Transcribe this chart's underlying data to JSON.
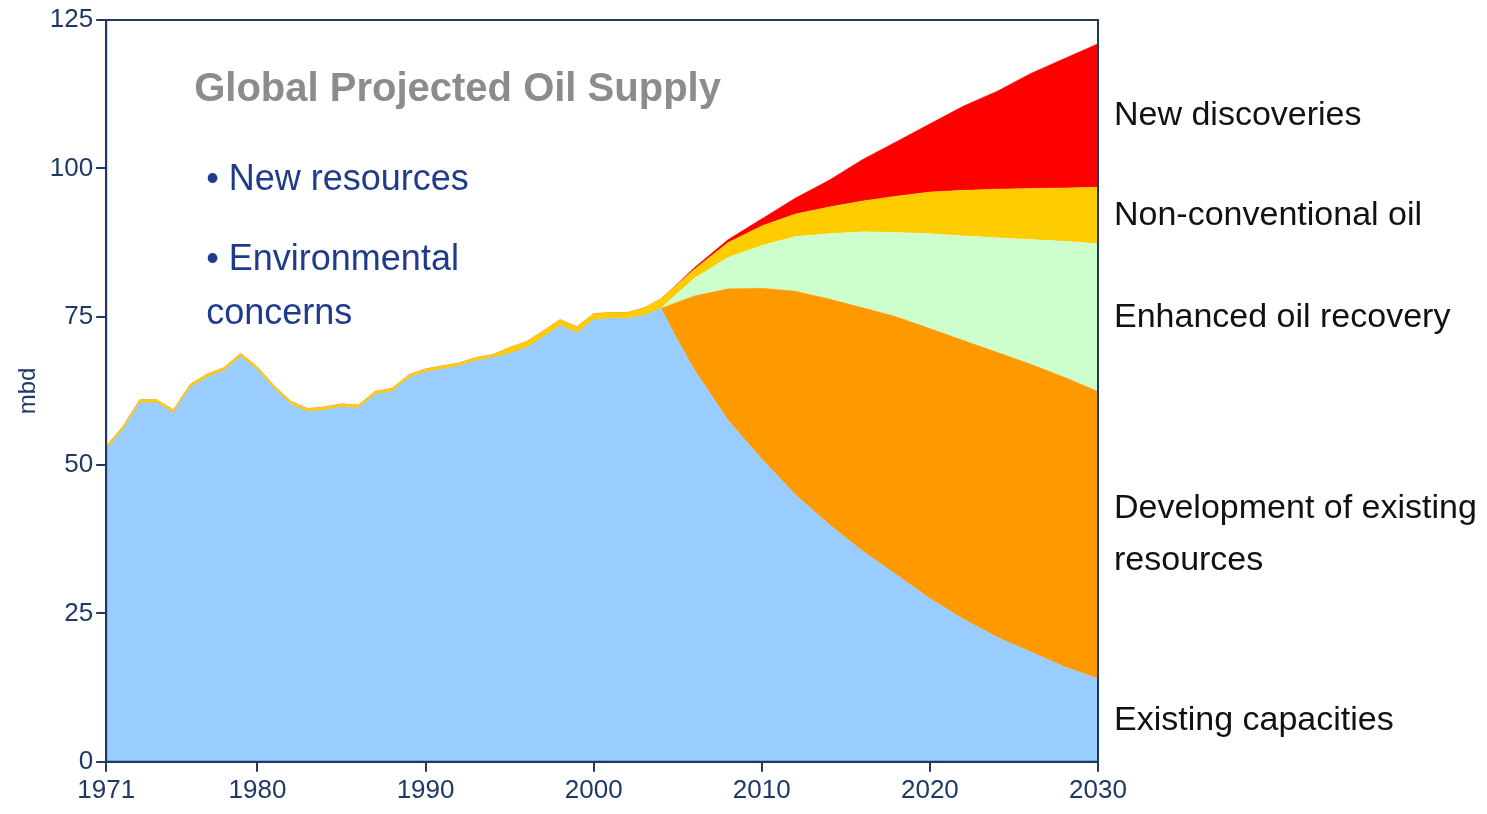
{
  "chart_data": {
    "type": "area",
    "stacked": true,
    "title": "Global Projected Oil Supply",
    "ylabel": "mbd",
    "annotations": [
      "• New resources",
      "• Environmental concerns"
    ],
    "x": [
      1971,
      1972,
      1973,
      1974,
      1975,
      1976,
      1977,
      1978,
      1979,
      1980,
      1981,
      1982,
      1983,
      1984,
      1985,
      1986,
      1987,
      1988,
      1989,
      1990,
      1991,
      1992,
      1993,
      1994,
      1995,
      1996,
      1997,
      1998,
      1999,
      2000,
      2001,
      2002,
      2003,
      2004,
      2005,
      2006,
      2008,
      2010,
      2012,
      2014,
      2016,
      2018,
      2020,
      2022,
      2024,
      2026,
      2028,
      2030
    ],
    "xlim": [
      1971,
      2030
    ],
    "xticks": [
      1971,
      1980,
      1990,
      2000,
      2010,
      2020,
      2030
    ],
    "ylim": [
      0,
      125
    ],
    "yticks": [
      0,
      25,
      50,
      75,
      100,
      125
    ],
    "grid": false,
    "legend": false,
    "marker": "none",
    "series": [
      {
        "name": "Existing capacities",
        "color": "#99ccff",
        "values": [
          52.7,
          56,
          60.5,
          60.5,
          58.8,
          63.1,
          64.8,
          65.9,
          68.3,
          66,
          62.8,
          60.2,
          59,
          59.3,
          59.8,
          59.6,
          61.9,
          62.4,
          64.7,
          65.7,
          66.2,
          66.7,
          67.6,
          68.1,
          68.8,
          69.8,
          71.6,
          73.5,
          72.3,
          74.5,
          74.7,
          74.7,
          75.2,
          76.4,
          71,
          66,
          57.5,
          51,
          45,
          40,
          35.5,
          31.5,
          27.5,
          24,
          21,
          18.5,
          16,
          14
        ]
      },
      {
        "name": "Development of existing resources",
        "color": "#ff9900",
        "values": [
          0,
          0,
          0,
          0,
          0,
          0,
          0,
          0,
          0,
          0,
          0,
          0,
          0,
          0,
          0,
          0,
          0,
          0,
          0,
          0,
          0,
          0,
          0,
          0,
          0,
          0,
          0,
          0,
          0,
          0,
          0,
          0,
          0,
          0,
          6.5,
          12.5,
          22.2,
          28.8,
          34.3,
          38,
          41,
          43.5,
          45.5,
          47,
          48,
          48.5,
          48.8,
          48.4
        ]
      },
      {
        "name": "Enhanced oil recovery",
        "color": "#ccffcc",
        "values": [
          0,
          0,
          0,
          0,
          0,
          0,
          0,
          0,
          0,
          0,
          0,
          0,
          0,
          0,
          0,
          0,
          0,
          0,
          0,
          0,
          0,
          0,
          0,
          0,
          0,
          0,
          0,
          0,
          0,
          0,
          0,
          0,
          0,
          0,
          1.5,
          3,
          5.3,
          7.2,
          9.2,
          11,
          12.8,
          14.2,
          16,
          17.6,
          19.3,
          21,
          22.9,
          24.9
        ]
      },
      {
        "name": "Non-conventional oil",
        "color": "#ffcc00",
        "values": [
          0.5,
          0.5,
          0.5,
          0.5,
          0.5,
          0.5,
          0.5,
          0.5,
          0.5,
          0.5,
          0.5,
          0.5,
          0.5,
          0.5,
          0.5,
          0.5,
          0.5,
          0.5,
          0.5,
          0.5,
          0.5,
          0.5,
          0.5,
          0.5,
          1,
          1,
          1,
          1,
          1,
          1,
          1,
          1,
          1.3,
          1.6,
          1.5,
          1.5,
          2.5,
          3.3,
          3.8,
          4.5,
          5.2,
          6.1,
          7,
          7.7,
          8.2,
          8.6,
          9,
          9.5
        ]
      },
      {
        "name": "New discoveries",
        "color": "#ff0000",
        "values": [
          0,
          0,
          0,
          0,
          0,
          0,
          0,
          0,
          0,
          0,
          0,
          0,
          0,
          0,
          0,
          0,
          0,
          0,
          0,
          0,
          0,
          0,
          0,
          0,
          0,
          0,
          0,
          0,
          0,
          0,
          0,
          0,
          0,
          0,
          0.1,
          0.3,
          0.5,
          1.2,
          2.7,
          4.5,
          7,
          9.2,
          11.5,
          14.2,
          16.5,
          19.4,
          21.8,
          24.2
        ]
      }
    ]
  }
}
